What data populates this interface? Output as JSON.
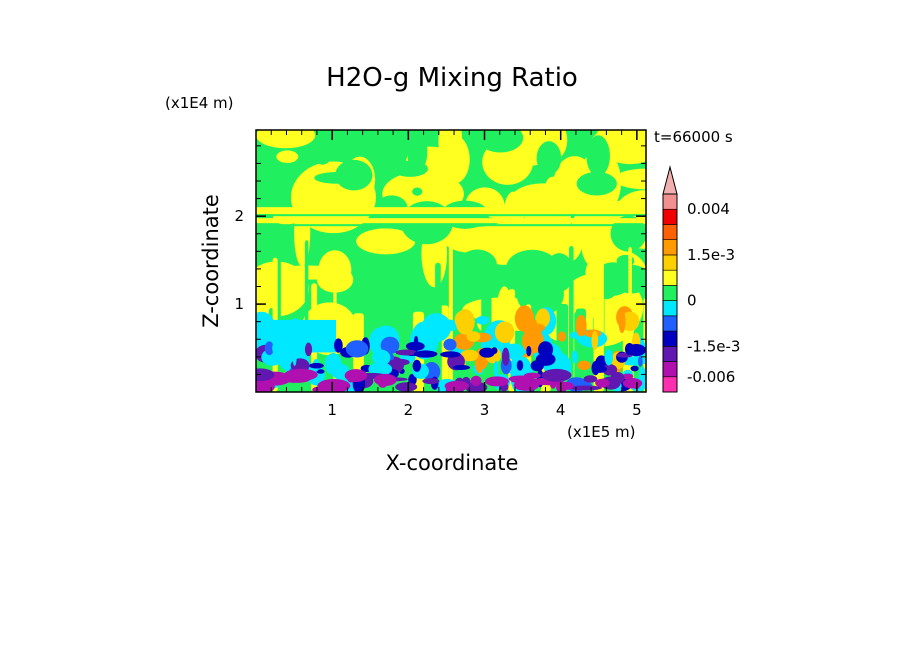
{
  "chart_data": {
    "type": "heatmap",
    "title": "H2O-g Mixing Ratio",
    "xlabel": "X-coordinate",
    "ylabel": "Z-coordinate",
    "x_scale_label": "(x1E5 m)",
    "y_scale_label": "(x1E4 m)",
    "time_label": "t=66000 s",
    "xlim": [
      0,
      5.12
    ],
    "ylim": [
      0,
      2.98
    ],
    "x_ticks": [
      {
        "value": 1,
        "label": "1"
      },
      {
        "value": 2,
        "label": "2"
      },
      {
        "value": 3,
        "label": "3"
      },
      {
        "value": 4,
        "label": "4"
      },
      {
        "value": 5,
        "label": "5"
      }
    ],
    "y_ticks": [
      {
        "value": 1,
        "label": "1"
      },
      {
        "value": 2,
        "label": "2"
      }
    ],
    "colorbar": {
      "levels": [
        -0.009,
        -0.006,
        -0.003,
        -0.0015,
        -0.001,
        -0.0005,
        0,
        0.0005,
        0.001,
        0.0015,
        0.002,
        0.003,
        0.004,
        0.005
      ],
      "colors": [
        "#ff30b0",
        "#b010b0",
        "#6018b0",
        "#0000c0",
        "#2060ff",
        "#00e8ff",
        "#20f060",
        "#ffff20",
        "#ffd000",
        "#ff9a00",
        "#ff6000",
        "#f00000",
        "#f09090"
      ],
      "extend_max_color": "#f0b0b0",
      "tick_labels": [
        {
          "value": 0.004,
          "label": "0.004"
        },
        {
          "value": 0.0015,
          "label": "1.5e-3"
        },
        {
          "value": 0,
          "label": "0"
        },
        {
          "value": -0.0015,
          "label": "-1.5e-3"
        },
        {
          "value": -0.006,
          "label": "-0.006"
        }
      ]
    }
  }
}
